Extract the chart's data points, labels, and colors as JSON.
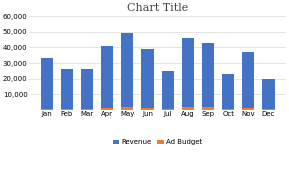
{
  "title": "Chart Title",
  "months": [
    "Jan",
    "Feb",
    "Mar",
    "Apr",
    "May",
    "Jun",
    "Jul",
    "Aug",
    "Sep",
    "Oct",
    "Nov",
    "Dec"
  ],
  "revenue": [
    33000,
    26000,
    26000,
    41000,
    49000,
    39000,
    25000,
    46000,
    43000,
    23000,
    37000,
    20000
  ],
  "ad_budget": [
    500,
    500,
    500,
    1000,
    2000,
    800,
    500,
    1500,
    2000,
    500,
    1000,
    500
  ],
  "bar_color_revenue": "#4472C4",
  "bar_color_ad": "#ED7D31",
  "ylim": [
    0,
    60000
  ],
  "yticks": [
    10000,
    20000,
    30000,
    40000,
    50000,
    60000
  ],
  "background_color": "#FFFFFF",
  "grid_color": "#DADADA",
  "title_fontsize": 8,
  "tick_fontsize": 5.0,
  "legend_fontsize": 5.0
}
